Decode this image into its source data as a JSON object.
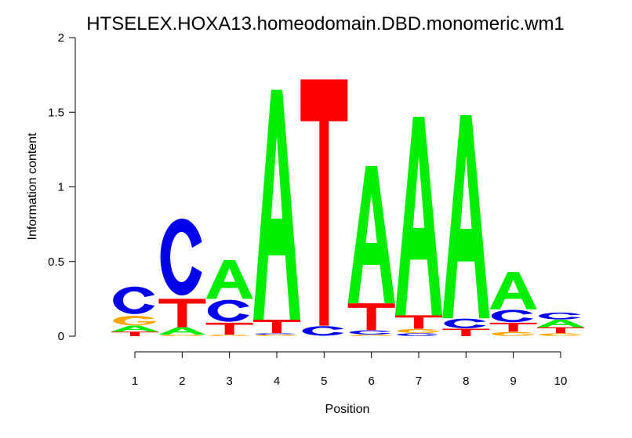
{
  "chart_data": {
    "type": "sequence-logo",
    "title": "HTSELEX.HOXA13.homeodomain.DBD.monomeric.wm1",
    "xlabel": "Position",
    "ylabel": "Information content",
    "ylim": [
      0,
      2
    ],
    "y_ticks": [
      "0",
      "0.5",
      "1",
      "1.5",
      "2"
    ],
    "x_ticks": [
      "1",
      "2",
      "3",
      "4",
      "5",
      "6",
      "7",
      "8",
      "9",
      "10"
    ],
    "colors": {
      "A": "#00ee00",
      "C": "#0000ee",
      "G": "#ffa500",
      "T": "#ff0000"
    },
    "positions": [
      {
        "x": 1,
        "stack": [
          {
            "base": "T",
            "h": 0.03
          },
          {
            "base": "A",
            "h": 0.04
          },
          {
            "base": "G",
            "h": 0.07
          },
          {
            "base": "C",
            "h": 0.2
          }
        ]
      },
      {
        "x": 2,
        "stack": [
          {
            "base": "G",
            "h": 0.01
          },
          {
            "base": "A",
            "h": 0.05
          },
          {
            "base": "T",
            "h": 0.19
          },
          {
            "base": "C",
            "h": 0.56
          }
        ]
      },
      {
        "x": 3,
        "stack": [
          {
            "base": "G",
            "h": 0.01
          },
          {
            "base": "T",
            "h": 0.08
          },
          {
            "base": "C",
            "h": 0.16
          },
          {
            "base": "A",
            "h": 0.26
          }
        ]
      },
      {
        "x": 4,
        "stack": [
          {
            "base": "G",
            "h": 0.01
          },
          {
            "base": "C",
            "h": 0.01
          },
          {
            "base": "T",
            "h": 0.09
          },
          {
            "base": "A",
            "h": 1.54
          }
        ]
      },
      {
        "x": 5,
        "stack": [
          {
            "base": "C",
            "h": 0.07
          },
          {
            "base": "T",
            "h": 1.65
          }
        ]
      },
      {
        "x": 6,
        "stack": [
          {
            "base": "G",
            "h": 0.01
          },
          {
            "base": "C",
            "h": 0.03
          },
          {
            "base": "T",
            "h": 0.18
          },
          {
            "base": "A",
            "h": 0.92
          }
        ]
      },
      {
        "x": 7,
        "stack": [
          {
            "base": "C",
            "h": 0.02
          },
          {
            "base": "G",
            "h": 0.03
          },
          {
            "base": "T",
            "h": 0.09
          },
          {
            "base": "A",
            "h": 1.33
          }
        ]
      },
      {
        "x": 8,
        "stack": [
          {
            "base": "T",
            "h": 0.05
          },
          {
            "base": "C",
            "h": 0.07
          },
          {
            "base": "A",
            "h": 1.36
          }
        ]
      },
      {
        "x": 9,
        "stack": [
          {
            "base": "G",
            "h": 0.03
          },
          {
            "base": "T",
            "h": 0.06
          },
          {
            "base": "C",
            "h": 0.09
          },
          {
            "base": "A",
            "h": 0.25
          }
        ]
      },
      {
        "x": 10,
        "stack": [
          {
            "base": "G",
            "h": 0.02
          },
          {
            "base": "T",
            "h": 0.04
          },
          {
            "base": "A",
            "h": 0.05
          },
          {
            "base": "C",
            "h": 0.05
          }
        ]
      }
    ]
  }
}
